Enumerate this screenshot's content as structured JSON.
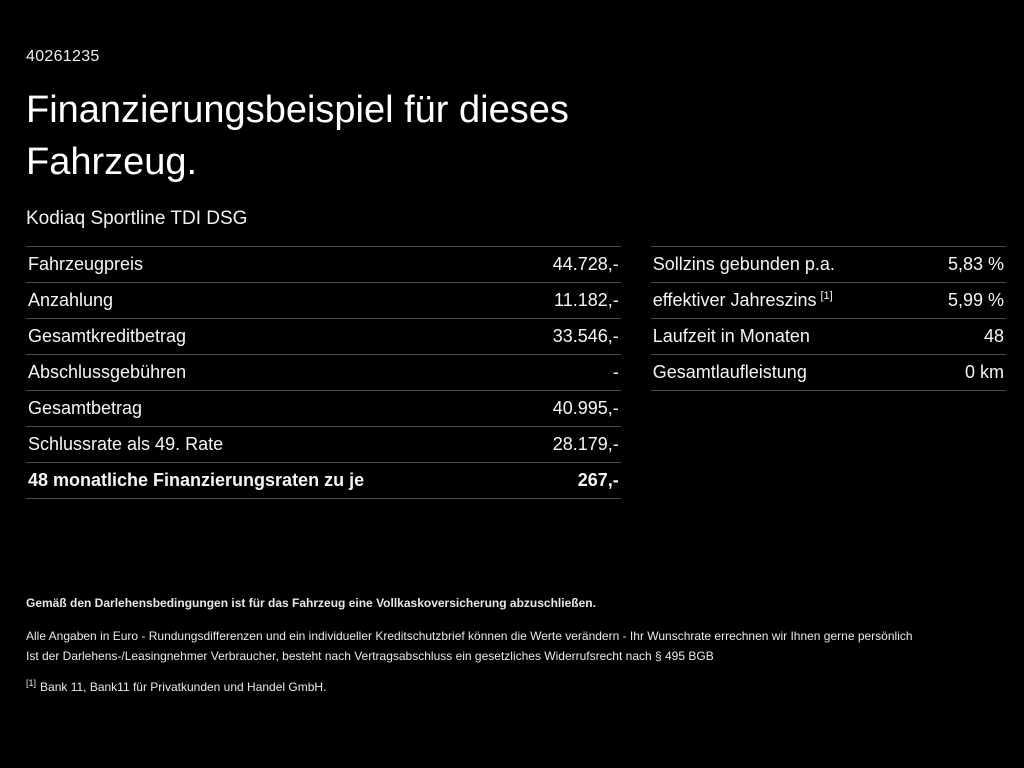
{
  "page": {
    "vehicle_id": "40261235",
    "title_line1": "Finanzierungsbeispiel für dieses",
    "title_line2": "Fahrzeug.",
    "vehicle_name": "Kodiaq Sportline TDI DSG"
  },
  "colors": {
    "background": "#000000",
    "text": "#f5f5f5",
    "divider": "#4e4e4e"
  },
  "left_table": {
    "rows": [
      {
        "label": "Fahrzeugpreis",
        "value": "44.728,-"
      },
      {
        "label": "Anzahlung",
        "value": "11.182,-"
      },
      {
        "label": "Gesamtkreditbetrag",
        "value": "33.546,-"
      },
      {
        "label": "Abschlussgebühren",
        "value": "-"
      },
      {
        "label": "Gesamtbetrag",
        "value": "40.995,-"
      },
      {
        "label": "Schlussrate als 49. Rate",
        "value": "28.179,-"
      },
      {
        "label": "48 monatliche Finanzierungsraten zu je",
        "value": "267,-"
      }
    ]
  },
  "right_table": {
    "rows": [
      {
        "label": "Sollzins gebunden p.a.",
        "value": "5,83 %"
      },
      {
        "label": "effektiver Jahreszins",
        "sup": "[1]",
        "value": "5,99 %"
      },
      {
        "label": "Laufzeit in Monaten",
        "value": "48"
      },
      {
        "label": "Gesamtlaufleistung",
        "value": "0 km"
      }
    ]
  },
  "footer": {
    "line1": "Gemäß den Darlehensbedingungen ist für das Fahrzeug eine Vollkaskoversicherung abzuschließen.",
    "line2": "Alle Angaben in Euro - Rundungsdifferenzen und ein individueller Kreditschutzbrief können die Werte verändern - Ihr Wunschrate errechnen wir Ihnen gerne persönlich",
    "line3": "Ist der Darlehens-/Leasingnehmer Verbraucher, besteht nach Vertragsabschluss ein gesetzliches Widerrufsrecht nach § 495 BGB",
    "footnote_marker": "[1]",
    "footnote_text": "Bank 11, Bank11 für Privatkunden und Handel GmbH."
  }
}
